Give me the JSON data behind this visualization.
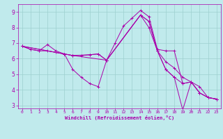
{
  "background_color": "#c0eaec",
  "line_color": "#aa00aa",
  "grid_color": "#9dcfcf",
  "xlabel": "Windchill (Refroidissement éolien,°C)",
  "xlim": [
    -0.5,
    23.5
  ],
  "ylim": [
    2.8,
    9.5
  ],
  "yticks": [
    3,
    4,
    5,
    6,
    7,
    8,
    9
  ],
  "xticks": [
    0,
    1,
    2,
    3,
    4,
    5,
    6,
    7,
    8,
    9,
    10,
    11,
    12,
    13,
    14,
    15,
    16,
    17,
    18,
    19,
    20,
    21,
    22,
    23
  ],
  "lines": [
    {
      "x": [
        0,
        1,
        2,
        3,
        4,
        5,
        6,
        10,
        11,
        12,
        13,
        14,
        15,
        16,
        17,
        18,
        19,
        20,
        21,
        22,
        23
      ],
      "y": [
        6.8,
        6.6,
        6.5,
        6.9,
        6.5,
        6.3,
        6.2,
        5.9,
        7.0,
        8.1,
        8.6,
        9.1,
        8.7,
        6.6,
        6.5,
        6.5,
        4.4,
        4.5,
        4.2,
        3.5,
        3.4
      ]
    },
    {
      "x": [
        0,
        1,
        2,
        3,
        4,
        5,
        6,
        7,
        8,
        9,
        10,
        14,
        15,
        16,
        17,
        18,
        19,
        20,
        21,
        22,
        23
      ],
      "y": [
        6.8,
        6.6,
        6.5,
        6.5,
        6.4,
        6.3,
        6.2,
        6.2,
        6.25,
        6.3,
        5.9,
        8.8,
        8.4,
        6.5,
        5.8,
        5.4,
        4.8,
        4.5,
        3.8,
        3.5,
        3.4
      ]
    },
    {
      "x": [
        0,
        5,
        6,
        7,
        8,
        9,
        10,
        14,
        15,
        16,
        17,
        18,
        19,
        20,
        21,
        22,
        23
      ],
      "y": [
        6.8,
        6.3,
        5.3,
        4.8,
        4.4,
        4.2,
        5.9,
        8.8,
        8.4,
        6.5,
        5.3,
        4.8,
        4.4,
        4.5,
        3.8,
        3.5,
        3.4
      ]
    },
    {
      "x": [
        0,
        5,
        6,
        8,
        9,
        10,
        14,
        15,
        16,
        17,
        18,
        19,
        20,
        21,
        22,
        23
      ],
      "y": [
        6.8,
        6.3,
        6.2,
        6.25,
        6.3,
        5.9,
        8.8,
        8.0,
        6.5,
        5.3,
        4.8,
        2.7,
        4.5,
        3.8,
        3.5,
        3.4
      ]
    }
  ]
}
